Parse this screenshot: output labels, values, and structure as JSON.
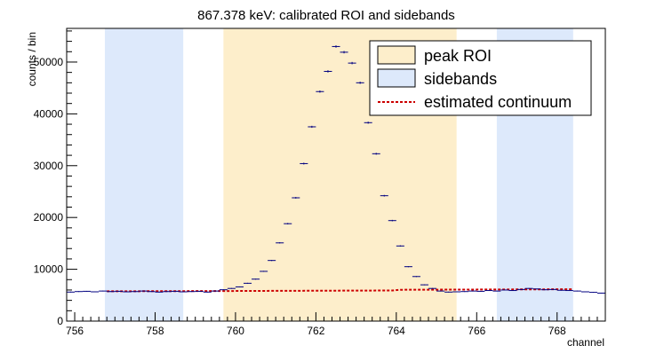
{
  "chart_data": {
    "type": "histogram",
    "title": "867.378 keV: calibrated ROI and sidebands",
    "xlabel": "channel",
    "ylabel": "counts / bin",
    "xlim": [
      755.8,
      769.2
    ],
    "ylim": [
      0,
      56500
    ],
    "x_ticks": [
      756,
      758,
      760,
      762,
      764,
      766,
      768
    ],
    "y_ticks": [
      0,
      10000,
      20000,
      30000,
      40000,
      50000
    ],
    "grid": false,
    "legend_position": "top-right",
    "bin_width": 0.2,
    "regions": {
      "peak_roi": {
        "label": "peak ROI",
        "color": "#fdeecb",
        "range": [
          759.7,
          765.5
        ]
      },
      "sidebands": {
        "label": "sidebands",
        "color": "#dde9fb",
        "ranges": [
          [
            756.75,
            758.7
          ],
          [
            766.5,
            768.4
          ]
        ]
      }
    },
    "continuum": {
      "label": "estimated continuum",
      "color": "#cc0000",
      "points": [
        [
          756.8,
          5750
        ],
        [
          759.7,
          5800
        ],
        [
          763.9,
          5900
        ],
        [
          764.1,
          6050
        ],
        [
          768.4,
          6150
        ]
      ]
    },
    "histogram": {
      "color": "#000080",
      "bins": [
        [
          755.9,
          5600
        ],
        [
          756.1,
          5700
        ],
        [
          756.3,
          5750
        ],
        [
          756.5,
          5650
        ],
        [
          756.7,
          5800
        ],
        [
          756.9,
          5700
        ],
        [
          757.1,
          5750
        ],
        [
          757.3,
          5650
        ],
        [
          757.5,
          5700
        ],
        [
          757.7,
          5800
        ],
        [
          757.9,
          5700
        ],
        [
          758.1,
          5600
        ],
        [
          758.3,
          5700
        ],
        [
          758.5,
          5750
        ],
        [
          758.7,
          5650
        ],
        [
          758.9,
          5700
        ],
        [
          759.1,
          5750
        ],
        [
          759.3,
          5600
        ],
        [
          759.5,
          5800
        ],
        [
          759.7,
          6050
        ],
        [
          759.9,
          6300
        ],
        [
          760.1,
          6600
        ],
        [
          760.3,
          7300
        ],
        [
          760.5,
          8100
        ],
        [
          760.7,
          9600
        ],
        [
          760.9,
          11700
        ],
        [
          761.1,
          15100
        ],
        [
          761.3,
          18800
        ],
        [
          761.5,
          23800
        ],
        [
          761.7,
          30400
        ],
        [
          761.9,
          37500
        ],
        [
          762.1,
          44300
        ],
        [
          762.3,
          48200
        ],
        [
          762.5,
          53000
        ],
        [
          762.7,
          51900
        ],
        [
          762.9,
          49800
        ],
        [
          763.1,
          46000
        ],
        [
          763.3,
          38300
        ],
        [
          763.5,
          32300
        ],
        [
          763.7,
          24200
        ],
        [
          763.9,
          19400
        ],
        [
          764.1,
          14500
        ],
        [
          764.3,
          10500
        ],
        [
          764.5,
          8600
        ],
        [
          764.7,
          7000
        ],
        [
          764.9,
          6300
        ],
        [
          765.1,
          5800
        ],
        [
          765.3,
          5600
        ],
        [
          765.5,
          5650
        ],
        [
          765.7,
          5700
        ],
        [
          765.9,
          5800
        ],
        [
          766.1,
          5750
        ],
        [
          766.3,
          5900
        ],
        [
          766.5,
          5800
        ],
        [
          766.7,
          6000
        ],
        [
          766.9,
          5900
        ],
        [
          767.1,
          6100
        ],
        [
          767.3,
          6300
        ],
        [
          767.5,
          6200
        ],
        [
          767.7,
          6050
        ],
        [
          767.9,
          6100
        ],
        [
          768.1,
          5950
        ],
        [
          768.3,
          5900
        ],
        [
          768.5,
          5800
        ],
        [
          768.7,
          5650
        ],
        [
          768.9,
          5550
        ],
        [
          769.1,
          5400
        ]
      ]
    }
  }
}
